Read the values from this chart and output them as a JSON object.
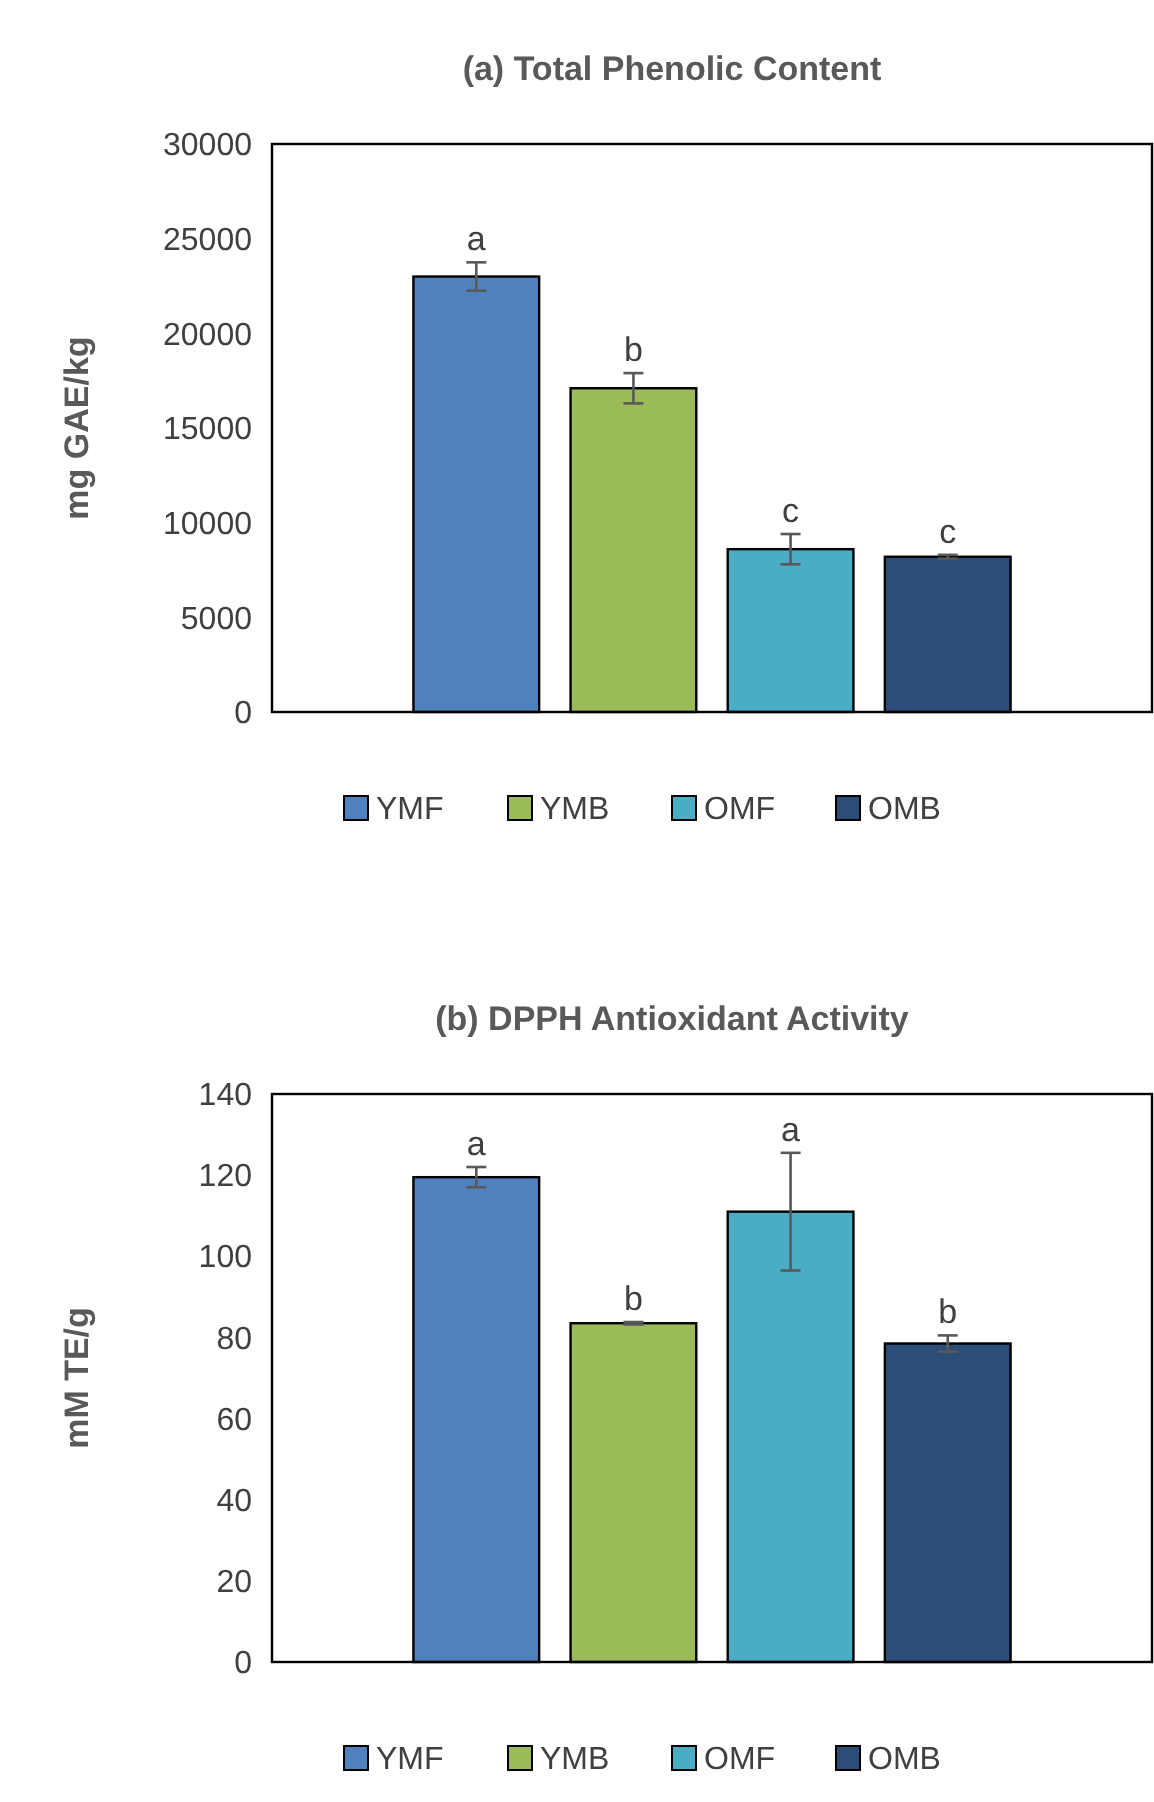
{
  "chart_data": [
    {
      "type": "bar",
      "title": "(a) Total Phenolic Content",
      "ylabel": "mg GAE/kg",
      "categories": [
        null
      ],
      "series": [
        {
          "name": "YMF",
          "color": "#4f81bd",
          "values": [
            23000
          ],
          "errors": [
            750
          ]
        },
        {
          "name": "YMB",
          "color": "#9bbb59",
          "values": [
            17100
          ],
          "errors": [
            800
          ]
        },
        {
          "name": "OMF",
          "color": "#4bacc6",
          "values": [
            8600
          ],
          "errors": [
            800
          ]
        },
        {
          "name": "OMB",
          "color": "#2c4d75",
          "values": [
            8200
          ],
          "errors": [
            100
          ]
        }
      ],
      "ylim": [
        0,
        30000
      ],
      "yticks": [
        0,
        5000,
        10000,
        15000,
        20000,
        25000,
        30000
      ],
      "grid": false,
      "legend": "bottom",
      "annotations": [
        "a",
        "b",
        "c",
        "c"
      ]
    },
    {
      "type": "bar",
      "title": "(b) DPPH Antioxidant Activity",
      "ylabel": "mM TE/g",
      "categories": [
        null
      ],
      "series": [
        {
          "name": "YMF",
          "color": "#4f81bd",
          "values": [
            119.5
          ],
          "errors": [
            2.5
          ]
        },
        {
          "name": "YMB",
          "color": "#9bbb59",
          "values": [
            83.5
          ],
          "errors": [
            0.3
          ]
        },
        {
          "name": "OMF",
          "color": "#4bacc6",
          "values": [
            111
          ],
          "errors": [
            14.5
          ]
        },
        {
          "name": "OMB",
          "color": "#2c4d75",
          "values": [
            78.5
          ],
          "errors": [
            2
          ]
        }
      ],
      "ylim": [
        0,
        140
      ],
      "yticks": [
        0,
        20,
        40,
        60,
        80,
        100,
        120,
        140
      ],
      "grid": false,
      "legend": "bottom",
      "annotations": [
        "a",
        "b",
        "a",
        "b"
      ]
    }
  ]
}
